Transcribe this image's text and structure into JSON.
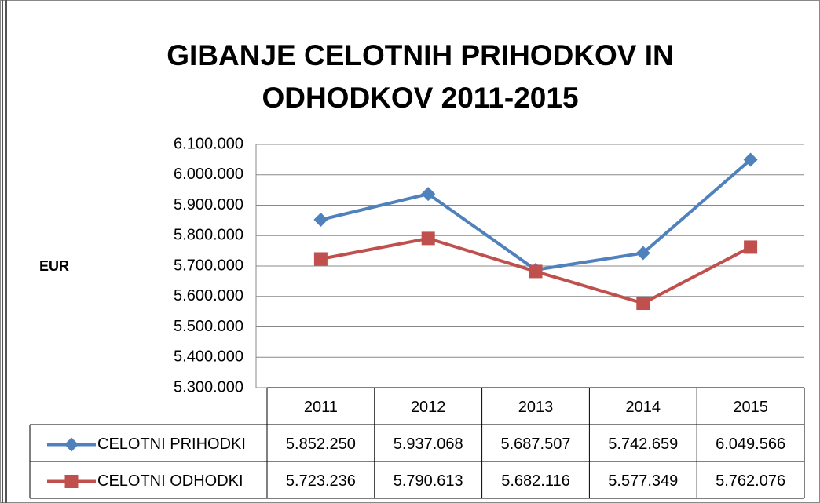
{
  "chart_data": {
    "type": "line",
    "title": "GIBANJE CELOTNIH PRIHODKOV IN ODHODKOV 2011-2015",
    "ylabel": "EUR",
    "categories": [
      "2011",
      "2012",
      "2013",
      "2014",
      "2015"
    ],
    "series": [
      {
        "name": "CELOTNI PRIHODKI",
        "color": "#4f81bd",
        "marker": "diamond",
        "values": [
          5852250,
          5937068,
          5687507,
          5742659,
          6049566
        ],
        "value_labels": [
          "5.852.250",
          "5.937.068",
          "5.687.507",
          "5.742.659",
          "6.049.566"
        ]
      },
      {
        "name": "CELOTNI ODHODKI",
        "color": "#c0504d",
        "marker": "square",
        "values": [
          5723236,
          5790613,
          5682116,
          5577349,
          5762076
        ],
        "value_labels": [
          "5.723.236",
          "5.790.613",
          "5.682.116",
          "5.577.349",
          "5.762.076"
        ]
      }
    ],
    "ylim": [
      5300000,
      6100000
    ],
    "yticks": [
      {
        "value": 5300000,
        "label": "5.300.000"
      },
      {
        "value": 5400000,
        "label": "5.400.000"
      },
      {
        "value": 5500000,
        "label": "5.500.000"
      },
      {
        "value": 5600000,
        "label": "5.600.000"
      },
      {
        "value": 5700000,
        "label": "5.700.000"
      },
      {
        "value": 5800000,
        "label": "5.800.000"
      },
      {
        "value": 5900000,
        "label": "5.900.000"
      },
      {
        "value": 6000000,
        "label": "6.000.000"
      },
      {
        "value": 6100000,
        "label": "6.100.000"
      }
    ],
    "grid": true,
    "legend": "table"
  }
}
